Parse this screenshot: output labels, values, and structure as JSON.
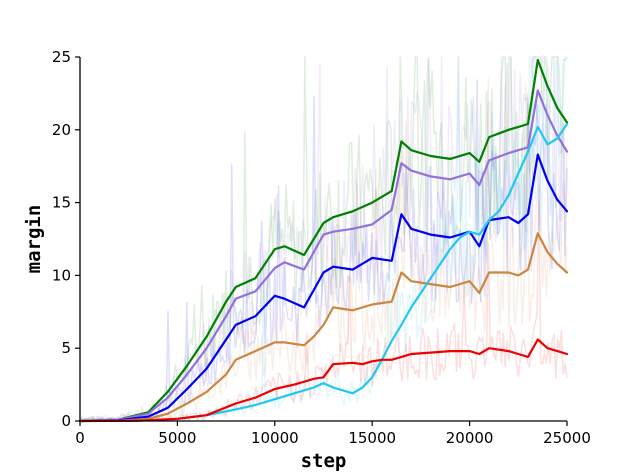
{
  "chart_data": {
    "type": "line",
    "xlabel": "step",
    "ylabel": "margin",
    "xlim": [
      0,
      25000
    ],
    "ylim": [
      0,
      25
    ],
    "xticks": [
      "0",
      "5000",
      "10000",
      "15000",
      "20000",
      "25000"
    ],
    "yticks": [
      "0",
      "5",
      "10",
      "15",
      "20",
      "25"
    ],
    "grid": false,
    "legend": "none",
    "series": [
      {
        "color": "#008000",
        "x": [
          0,
          2000,
          3500,
          4500,
          5500,
          6500,
          7500,
          8000,
          9000,
          10000,
          10500,
          11500,
          12000,
          12500,
          13000,
          14000,
          15000,
          16000,
          16500,
          17000,
          18000,
          19000,
          20000,
          20500,
          21000,
          22000,
          22500,
          23000,
          23500,
          24000,
          24500,
          25000
        ],
        "y": [
          0,
          0.1,
          0.6,
          2.0,
          3.8,
          5.8,
          8.2,
          9.2,
          9.8,
          11.8,
          12.0,
          11.4,
          12.5,
          13.6,
          14.0,
          14.4,
          15.0,
          15.8,
          19.2,
          18.6,
          18.2,
          18.0,
          18.4,
          17.8,
          19.5,
          20.0,
          20.2,
          20.4,
          24.8,
          23.0,
          21.5,
          20.5
        ]
      },
      {
        "color": "#9370DB",
        "x": [
          0,
          2000,
          3500,
          4500,
          5500,
          6500,
          7500,
          8000,
          9000,
          10000,
          10500,
          11500,
          12000,
          12500,
          13000,
          14000,
          15000,
          16000,
          16500,
          17000,
          18000,
          19000,
          20000,
          20500,
          21000,
          22000,
          22500,
          23000,
          23500,
          24000,
          24500,
          25000
        ],
        "y": [
          0,
          0.1,
          0.5,
          1.6,
          3.2,
          5.0,
          7.2,
          8.4,
          8.9,
          10.5,
          10.9,
          10.4,
          11.6,
          12.8,
          13.0,
          13.2,
          13.5,
          14.5,
          17.7,
          17.2,
          16.8,
          16.6,
          17.0,
          16.2,
          17.9,
          18.4,
          18.6,
          18.8,
          22.7,
          21.0,
          19.6,
          18.5
        ]
      },
      {
        "color": "#0000EE",
        "x": [
          0,
          2000,
          3500,
          4500,
          5500,
          6500,
          7500,
          8000,
          9000,
          10000,
          10500,
          11500,
          12000,
          12500,
          13000,
          14000,
          15000,
          16000,
          16500,
          17000,
          18000,
          19000,
          20000,
          20500,
          21000,
          22000,
          22500,
          23000,
          23500,
          24000,
          24500,
          25000
        ],
        "y": [
          0,
          0.05,
          0.3,
          0.9,
          2.2,
          3.6,
          5.6,
          6.6,
          7.2,
          8.6,
          8.4,
          7.8,
          9.0,
          10.2,
          10.6,
          10.4,
          11.2,
          11.0,
          14.2,
          13.2,
          12.8,
          12.6,
          13.0,
          12.0,
          13.8,
          14.0,
          13.6,
          14.2,
          18.3,
          16.5,
          15.2,
          14.4
        ]
      },
      {
        "color": "#CD853F",
        "x": [
          0,
          2000,
          3500,
          4500,
          5500,
          6500,
          7500,
          8000,
          9000,
          10000,
          10500,
          11500,
          12000,
          12500,
          13000,
          14000,
          15000,
          16000,
          16500,
          17000,
          18000,
          19000,
          20000,
          20500,
          21000,
          22000,
          22500,
          23000,
          23500,
          24000,
          24500,
          25000
        ],
        "y": [
          0,
          0.02,
          0.15,
          0.5,
          1.2,
          2.0,
          3.2,
          4.2,
          4.8,
          5.4,
          5.4,
          5.2,
          5.8,
          6.6,
          7.8,
          7.6,
          8.0,
          8.2,
          10.2,
          9.6,
          9.4,
          9.2,
          9.6,
          8.8,
          10.2,
          10.2,
          10.0,
          10.4,
          12.9,
          11.6,
          10.8,
          10.2
        ]
      },
      {
        "color": "#1EC8F0",
        "x": [
          0,
          3000,
          5000,
          6500,
          8000,
          9000,
          10000,
          11000,
          12000,
          12500,
          13000,
          14000,
          14500,
          15000,
          15500,
          16000,
          16500,
          17000,
          17500,
          18000,
          18500,
          19000,
          19500,
          20000,
          20500,
          21000,
          21500,
          22000,
          22500,
          23000,
          23500,
          24000,
          24500,
          25000
        ],
        "y": [
          0,
          0.02,
          0.15,
          0.4,
          0.8,
          1.1,
          1.5,
          1.9,
          2.3,
          2.6,
          2.3,
          1.9,
          2.3,
          3.0,
          4.2,
          5.5,
          6.6,
          7.8,
          8.8,
          9.8,
          10.8,
          11.8,
          12.6,
          13.0,
          12.8,
          13.8,
          14.4,
          15.5,
          17.0,
          18.5,
          20.2,
          19.0,
          19.4,
          20.4
        ]
      },
      {
        "color": "#EE0000",
        "x": [
          0,
          3000,
          5000,
          6500,
          8000,
          9000,
          10000,
          11000,
          12000,
          12500,
          13000,
          14000,
          14500,
          15000,
          15500,
          16000,
          16500,
          17000,
          18000,
          19000,
          20000,
          20500,
          21000,
          22000,
          22500,
          23000,
          23500,
          24000,
          24500,
          25000
        ],
        "y": [
          0,
          0.02,
          0.15,
          0.4,
          1.2,
          1.6,
          2.2,
          2.5,
          2.9,
          3.0,
          3.9,
          4.0,
          3.9,
          4.1,
          4.2,
          4.2,
          4.4,
          4.6,
          4.7,
          4.8,
          4.8,
          4.6,
          5.0,
          4.8,
          4.6,
          4.4,
          5.6,
          5.0,
          4.8,
          4.6
        ]
      }
    ]
  }
}
